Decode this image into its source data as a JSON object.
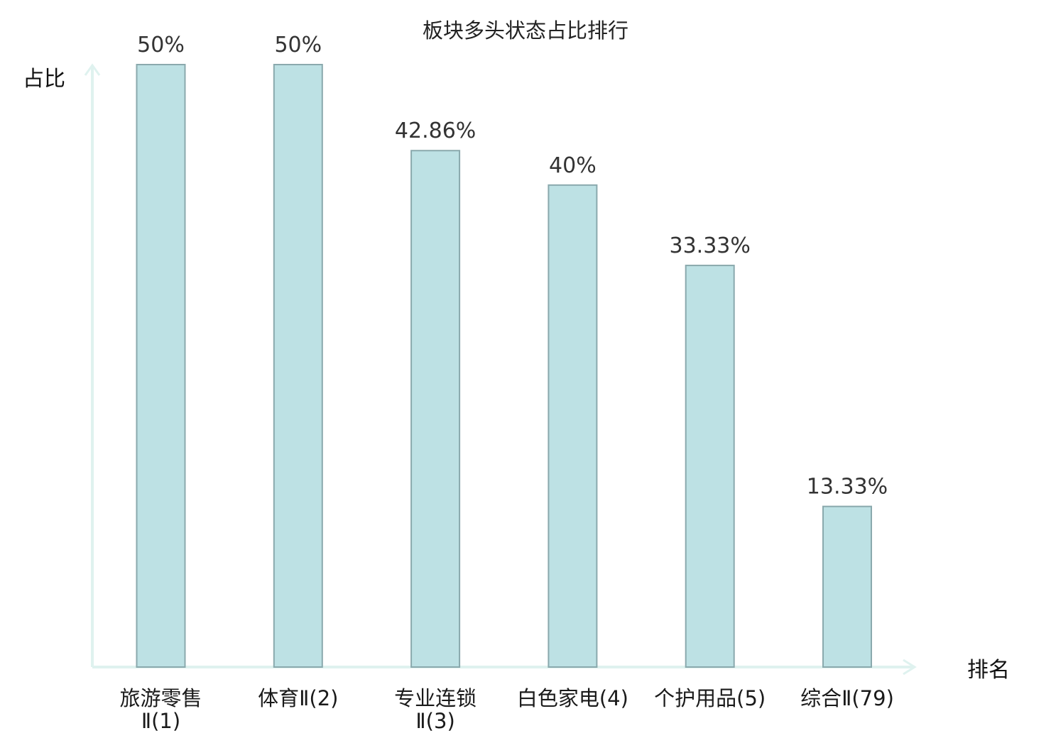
{
  "chart_data": {
    "type": "bar",
    "title": "板块多头状态占比排行",
    "ylabel": "占比",
    "xlabel": "排名",
    "ylim": [
      0,
      50
    ],
    "grid": false,
    "categories": [
      [
        "旅游零售",
        "Ⅱ(1)"
      ],
      [
        "体育Ⅱ(2)"
      ],
      [
        "专业连锁",
        "Ⅱ(3)"
      ],
      [
        "白色家电(4)"
      ],
      [
        "个护用品(5)"
      ],
      [
        "综合Ⅱ(79)"
      ]
    ],
    "values": [
      50,
      50,
      42.86,
      40,
      33.33,
      13.33
    ],
    "value_labels": [
      "50%",
      "50%",
      "42.86%",
      "40%",
      "33.33%",
      "13.33%"
    ],
    "highlight_index": 5
  },
  "colors": {
    "bar_fill": "#bde1e4",
    "bar_stroke": "#8aa9ad",
    "axis": "#dff2ef",
    "highlight_text": "#e02020",
    "text": "#1a1a1a"
  }
}
